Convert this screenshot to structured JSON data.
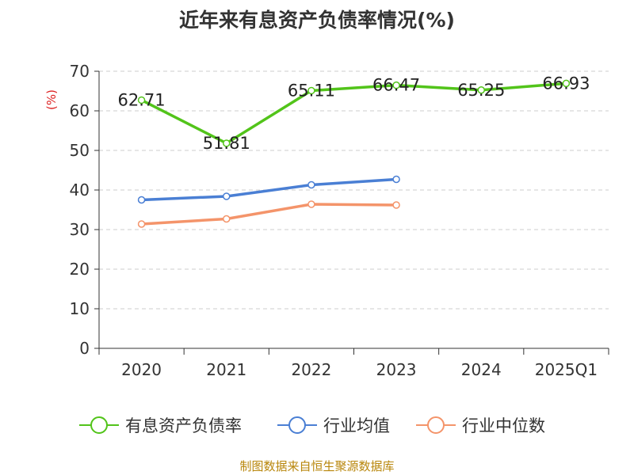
{
  "chart_data": {
    "type": "line",
    "title": "近年来有息资产负债率情况(%)",
    "ylabel": "(%)",
    "xlabel": "",
    "ylim": [
      0,
      70
    ],
    "yticks": [
      0,
      10,
      20,
      30,
      40,
      50,
      60,
      70
    ],
    "categories": [
      "2020",
      "2021",
      "2022",
      "2023",
      "2024",
      "2025Q1"
    ],
    "grid": true,
    "legend_position": "bottom",
    "series": [
      {
        "name": "有息资产负债率",
        "color": "#52c41a",
        "values": [
          62.71,
          51.81,
          65.11,
          66.47,
          65.25,
          66.93
        ],
        "labels": [
          "62.71",
          "51.81",
          "65.11",
          "66.47",
          "65.25",
          "66.93"
        ]
      },
      {
        "name": "行业均值",
        "color": "#4a7fd4",
        "values": [
          37.5,
          38.4,
          41.3,
          42.7,
          null,
          null
        ]
      },
      {
        "name": "行业中位数",
        "color": "#f4946a",
        "values": [
          31.4,
          32.7,
          36.4,
          36.2,
          null,
          null
        ]
      }
    ]
  },
  "footer": {
    "source": "制图数据来自恒生聚源数据库"
  }
}
